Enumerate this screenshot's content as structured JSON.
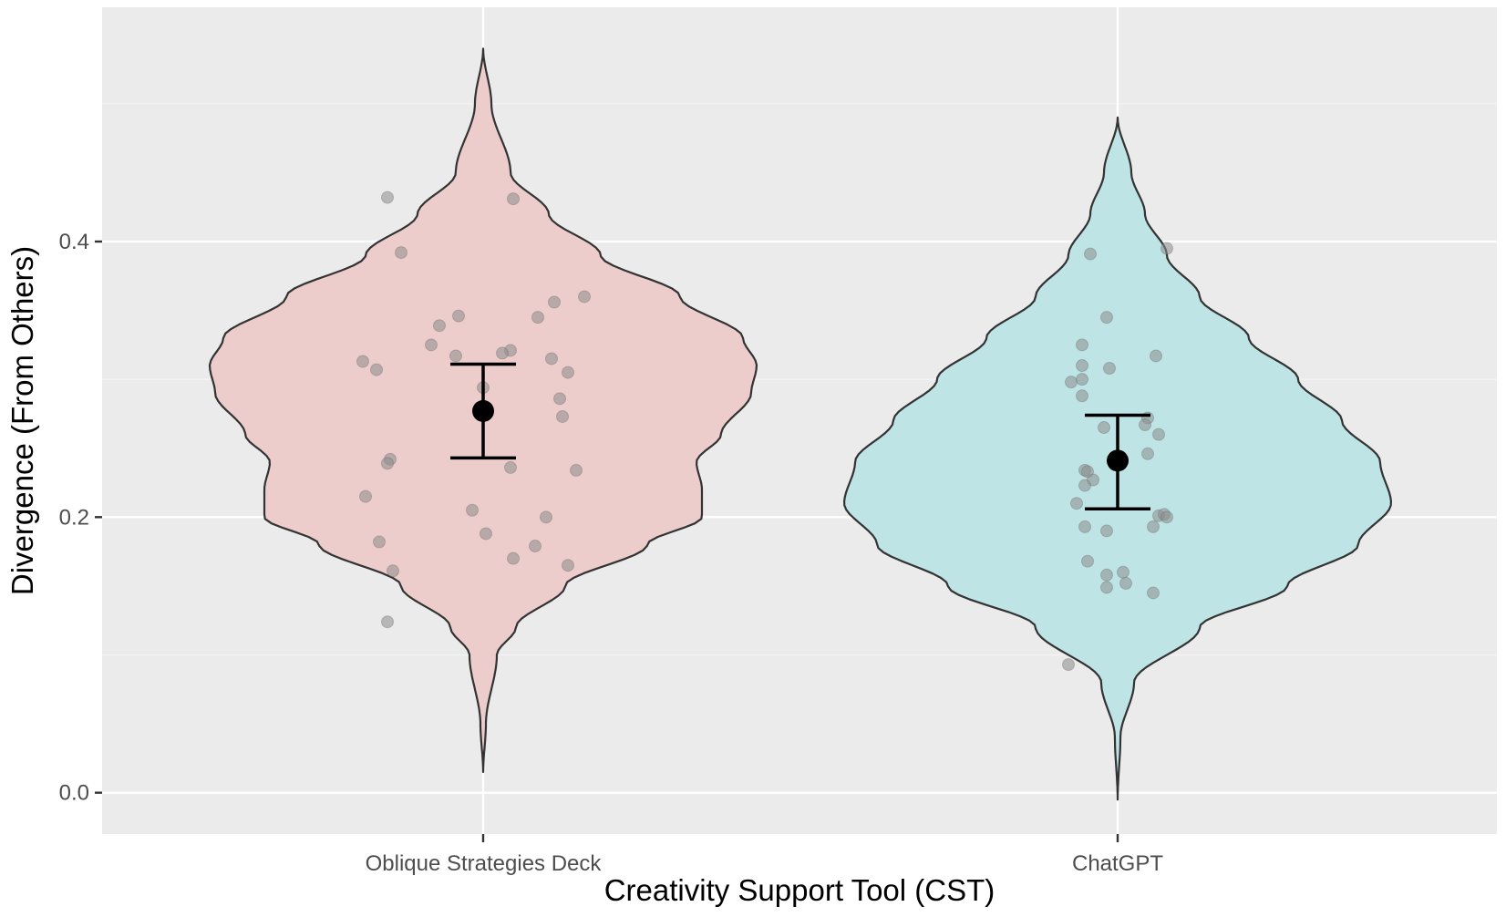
{
  "chart_data": {
    "type": "violin",
    "xlabel": "Creativity Support Tool (CST)",
    "ylabel": "Divergence (From Others)",
    "categories": [
      "Oblique Strategies Deck",
      "ChatGPT"
    ],
    "ylim": [
      -0.03,
      0.57
    ],
    "yticks": [
      {
        "value": 0.0,
        "label": "0.0"
      },
      {
        "value": 0.2,
        "label": "0.2"
      },
      {
        "value": 0.4,
        "label": "0.4"
      }
    ],
    "grid": true,
    "colors": {
      "panel": "#ebebeb",
      "fills": [
        "#ecccca",
        "#bde3e5"
      ],
      "outline": "#333333",
      "point": "#8c8c8c"
    },
    "series": [
      {
        "category": "Oblique Strategies Deck",
        "density_profile": [
          [
            0.015,
            0.0
          ],
          [
            0.05,
            0.01
          ],
          [
            0.1,
            0.05
          ],
          [
            0.12,
            0.12
          ],
          [
            0.15,
            0.3
          ],
          [
            0.18,
            0.6
          ],
          [
            0.2,
            0.8
          ],
          [
            0.22,
            0.8
          ],
          [
            0.24,
            0.78
          ],
          [
            0.26,
            0.87
          ],
          [
            0.29,
            0.98
          ],
          [
            0.31,
            1.0
          ],
          [
            0.33,
            0.95
          ],
          [
            0.36,
            0.72
          ],
          [
            0.39,
            0.43
          ],
          [
            0.42,
            0.24
          ],
          [
            0.45,
            0.1
          ],
          [
            0.5,
            0.03
          ],
          [
            0.54,
            0.0
          ]
        ],
        "mean": 0.277,
        "ci": [
          0.243,
          0.311
        ],
        "points": [
          {
            "x": -0.35,
            "y": 0.432
          },
          {
            "x": 0.11,
            "y": 0.431
          },
          {
            "x": -0.3,
            "y": 0.392
          },
          {
            "x": 0.37,
            "y": 0.36
          },
          {
            "x": 0.26,
            "y": 0.356
          },
          {
            "x": -0.09,
            "y": 0.346
          },
          {
            "x": 0.2,
            "y": 0.345
          },
          {
            "x": -0.16,
            "y": 0.339
          },
          {
            "x": -0.19,
            "y": 0.325
          },
          {
            "x": 0.1,
            "y": 0.321
          },
          {
            "x": 0.07,
            "y": 0.319
          },
          {
            "x": -0.1,
            "y": 0.317
          },
          {
            "x": 0.25,
            "y": 0.315
          },
          {
            "x": -0.44,
            "y": 0.313
          },
          {
            "x": -0.39,
            "y": 0.307
          },
          {
            "x": 0.31,
            "y": 0.305
          },
          {
            "x": 0.28,
            "y": 0.286
          },
          {
            "x": 0.0,
            "y": 0.294
          },
          {
            "x": 0.29,
            "y": 0.273
          },
          {
            "x": -0.34,
            "y": 0.242
          },
          {
            "x": -0.35,
            "y": 0.239
          },
          {
            "x": 0.1,
            "y": 0.236
          },
          {
            "x": 0.34,
            "y": 0.234
          },
          {
            "x": -0.43,
            "y": 0.215
          },
          {
            "x": -0.04,
            "y": 0.205
          },
          {
            "x": 0.23,
            "y": 0.2
          },
          {
            "x": 0.01,
            "y": 0.188
          },
          {
            "x": -0.38,
            "y": 0.182
          },
          {
            "x": 0.19,
            "y": 0.179
          },
          {
            "x": 0.11,
            "y": 0.17
          },
          {
            "x": 0.31,
            "y": 0.165
          },
          {
            "x": -0.33,
            "y": 0.161
          },
          {
            "x": -0.35,
            "y": 0.124
          }
        ]
      },
      {
        "category": "ChatGPT",
        "density_profile": [
          [
            -0.005,
            0.0
          ],
          [
            0.04,
            0.01
          ],
          [
            0.08,
            0.06
          ],
          [
            0.12,
            0.3
          ],
          [
            0.15,
            0.62
          ],
          [
            0.18,
            0.88
          ],
          [
            0.21,
            1.0
          ],
          [
            0.24,
            0.96
          ],
          [
            0.27,
            0.82
          ],
          [
            0.3,
            0.66
          ],
          [
            0.33,
            0.48
          ],
          [
            0.36,
            0.3
          ],
          [
            0.39,
            0.18
          ],
          [
            0.42,
            0.1
          ],
          [
            0.45,
            0.05
          ],
          [
            0.49,
            0.0
          ]
        ],
        "mean": 0.241,
        "ci": [
          0.206,
          0.274
        ],
        "points": [
          {
            "x": 0.18,
            "y": 0.395
          },
          {
            "x": -0.1,
            "y": 0.391
          },
          {
            "x": -0.04,
            "y": 0.345
          },
          {
            "x": -0.13,
            "y": 0.325
          },
          {
            "x": 0.14,
            "y": 0.317
          },
          {
            "x": -0.13,
            "y": 0.31
          },
          {
            "x": -0.03,
            "y": 0.308
          },
          {
            "x": -0.17,
            "y": 0.298
          },
          {
            "x": -0.13,
            "y": 0.3
          },
          {
            "x": -0.13,
            "y": 0.288
          },
          {
            "x": 0.11,
            "y": 0.272
          },
          {
            "x": 0.1,
            "y": 0.267
          },
          {
            "x": -0.05,
            "y": 0.265
          },
          {
            "x": 0.15,
            "y": 0.26
          },
          {
            "x": 0.11,
            "y": 0.246
          },
          {
            "x": -0.12,
            "y": 0.234
          },
          {
            "x": -0.11,
            "y": 0.233
          },
          {
            "x": -0.09,
            "y": 0.227
          },
          {
            "x": -0.12,
            "y": 0.223
          },
          {
            "x": -0.15,
            "y": 0.21
          },
          {
            "x": 0.15,
            "y": 0.201
          },
          {
            "x": 0.17,
            "y": 0.202
          },
          {
            "x": 0.18,
            "y": 0.2
          },
          {
            "x": 0.13,
            "y": 0.193
          },
          {
            "x": -0.12,
            "y": 0.193
          },
          {
            "x": -0.04,
            "y": 0.19
          },
          {
            "x": -0.11,
            "y": 0.168
          },
          {
            "x": -0.04,
            "y": 0.158
          },
          {
            "x": 0.02,
            "y": 0.16
          },
          {
            "x": 0.03,
            "y": 0.152
          },
          {
            "x": -0.04,
            "y": 0.149
          },
          {
            "x": 0.13,
            "y": 0.145
          },
          {
            "x": -0.18,
            "y": 0.093
          }
        ]
      }
    ]
  }
}
